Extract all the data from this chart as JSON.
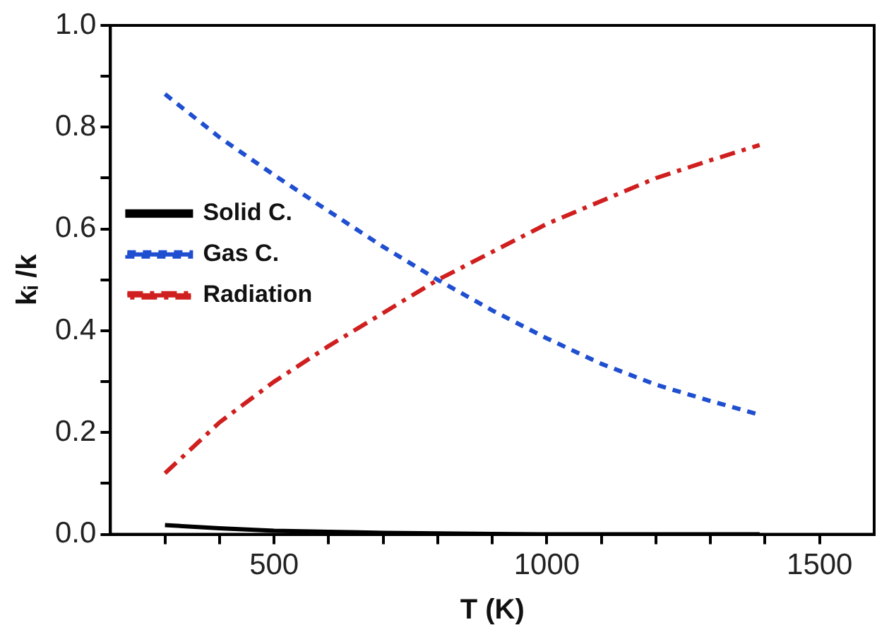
{
  "chart_data": {
    "type": "line",
    "xlabel": "T (K)",
    "ylabel": "kᵢ /k",
    "xlim": [
      200,
      1600
    ],
    "xticks": [
      {
        "value": 300,
        "label": null
      },
      {
        "value": 400,
        "label": null
      },
      500,
      {
        "value": 600,
        "label": null
      },
      {
        "value": 700,
        "label": null
      },
      {
        "value": 800,
        "label": null
      },
      {
        "value": 900,
        "label": null
      },
      1000,
      {
        "value": 1100,
        "label": null
      },
      {
        "value": 1200,
        "label": null
      },
      {
        "value": 1300,
        "label": null
      },
      {
        "value": 1400,
        "label": null
      },
      1500
    ],
    "ylim": [
      0,
      1
    ],
    "yticks": [
      {
        "value": 0,
        "label": "0.0"
      },
      {
        "value": 0.1,
        "label": null
      },
      0.2,
      {
        "value": 0.3,
        "label": null
      },
      0.4,
      {
        "value": 0.5,
        "label": null
      },
      0.6,
      {
        "value": 0.7,
        "label": null
      },
      0.8,
      {
        "value": 0.9,
        "label": null
      },
      {
        "value": 1,
        "label": "1.0"
      }
    ],
    "x": [
      300,
      400,
      500,
      600,
      700,
      800,
      900,
      1000,
      1100,
      1200,
      1300,
      1390
    ],
    "series": [
      {
        "name": "Solid C.",
        "color": "#000000",
        "line_style": "solid",
        "values": [
          0.018,
          0.012,
          0.007,
          0.005,
          0.003,
          0.002,
          0.001,
          0,
          0,
          0,
          0,
          0
        ]
      },
      {
        "name": "Gas C.",
        "color": "#1f4fd0",
        "line_style": "dashed",
        "values": [
          0.865,
          0.78,
          0.706,
          0.635,
          0.565,
          0.5,
          0.44,
          0.385,
          0.335,
          0.294,
          0.262,
          0.235
        ]
      },
      {
        "name": "Radiation",
        "color": "#d01f1f",
        "line_style": "dashdot",
        "values": [
          0.12,
          0.22,
          0.3,
          0.37,
          0.435,
          0.5,
          0.555,
          0.61,
          0.655,
          0.7,
          0.735,
          0.765
        ]
      }
    ],
    "legend": "top",
    "grid": false,
    "marker": "none"
  }
}
